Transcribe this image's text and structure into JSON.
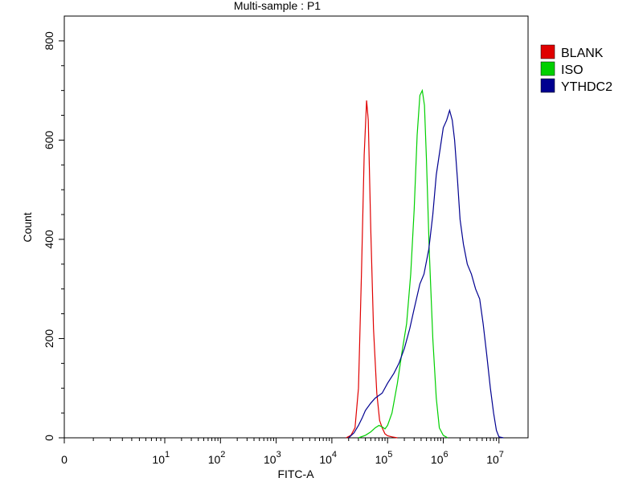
{
  "chart_data": {
    "type": "line",
    "title": "Multi-sample : P1",
    "xlabel": "FITC-A",
    "ylabel": "Count",
    "xscale": "biexponential-log",
    "ylim": [
      0,
      850
    ],
    "x_ticks": [
      {
        "value": 0,
        "base": "0",
        "exp": ""
      },
      {
        "value": 10,
        "base": "10",
        "exp": "1"
      },
      {
        "value": 100,
        "base": "10",
        "exp": "2"
      },
      {
        "value": 1000,
        "base": "10",
        "exp": "3"
      },
      {
        "value": 10000,
        "base": "10",
        "exp": "4"
      },
      {
        "value": 100000,
        "base": "10",
        "exp": "5"
      },
      {
        "value": 1000000,
        "base": "10",
        "exp": "6"
      },
      {
        "value": 10000000,
        "base": "10",
        "exp": "7"
      }
    ],
    "y_ticks": [
      "0",
      "200",
      "400",
      "600",
      "800"
    ],
    "legend_position": "top-right, outside plot",
    "series": [
      {
        "name": "BLANK",
        "color": "#e00000",
        "points": [
          [
            18000,
            0
          ],
          [
            22000,
            5
          ],
          [
            26000,
            20
          ],
          [
            30000,
            100
          ],
          [
            34000,
            330
          ],
          [
            38000,
            570
          ],
          [
            42000,
            680
          ],
          [
            45000,
            640
          ],
          [
            50000,
            420
          ],
          [
            56000,
            220
          ],
          [
            64000,
            90
          ],
          [
            72000,
            35
          ],
          [
            80000,
            20
          ],
          [
            90000,
            8
          ],
          [
            100000,
            4
          ],
          [
            120000,
            2
          ],
          [
            150000,
            0
          ]
        ]
      },
      {
        "name": "ISO",
        "color": "#00d000",
        "points": [
          [
            30000,
            0
          ],
          [
            40000,
            5
          ],
          [
            50000,
            12
          ],
          [
            60000,
            20
          ],
          [
            70000,
            25
          ],
          [
            80000,
            22
          ],
          [
            90000,
            18
          ],
          [
            100000,
            25
          ],
          [
            120000,
            50
          ],
          [
            150000,
            110
          ],
          [
            180000,
            170
          ],
          [
            220000,
            230
          ],
          [
            260000,
            330
          ],
          [
            300000,
            460
          ],
          [
            340000,
            610
          ],
          [
            380000,
            690
          ],
          [
            420000,
            700
          ],
          [
            460000,
            670
          ],
          [
            500000,
            560
          ],
          [
            560000,
            380
          ],
          [
            650000,
            200
          ],
          [
            750000,
            80
          ],
          [
            850000,
            20
          ],
          [
            1000000,
            5
          ],
          [
            1200000,
            0
          ]
        ]
      },
      {
        "name": "YTHDC2",
        "color": "#000090",
        "points": [
          [
            20000,
            0
          ],
          [
            25000,
            10
          ],
          [
            30000,
            25
          ],
          [
            35000,
            40
          ],
          [
            40000,
            55
          ],
          [
            50000,
            70
          ],
          [
            60000,
            80
          ],
          [
            80000,
            90
          ],
          [
            100000,
            110
          ],
          [
            130000,
            130
          ],
          [
            160000,
            150
          ],
          [
            200000,
            180
          ],
          [
            250000,
            220
          ],
          [
            300000,
            260
          ],
          [
            380000,
            310
          ],
          [
            450000,
            330
          ],
          [
            550000,
            380
          ],
          [
            650000,
            450
          ],
          [
            750000,
            530
          ],
          [
            900000,
            590
          ],
          [
            1000000,
            625
          ],
          [
            1150000,
            640
          ],
          [
            1300000,
            660
          ],
          [
            1450000,
            640
          ],
          [
            1600000,
            600
          ],
          [
            1800000,
            520
          ],
          [
            2000000,
            440
          ],
          [
            2300000,
            390
          ],
          [
            2700000,
            350
          ],
          [
            3200000,
            330
          ],
          [
            3800000,
            300
          ],
          [
            4500000,
            280
          ],
          [
            5200000,
            230
          ],
          [
            6000000,
            170
          ],
          [
            7000000,
            100
          ],
          [
            8000000,
            50
          ],
          [
            9000000,
            15
          ],
          [
            10000000,
            2
          ],
          [
            12000000,
            0
          ]
        ]
      }
    ]
  }
}
